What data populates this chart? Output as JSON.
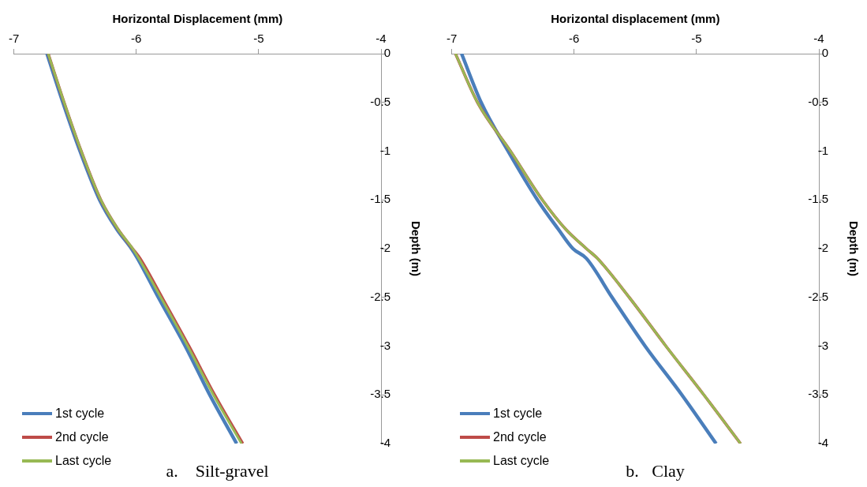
{
  "chart_data": [
    {
      "type": "line",
      "xlabel": "Horizontal Displacement (mm)",
      "ylabel": "Depth (m)",
      "xlim": [
        -7,
        -4
      ],
      "xticks": [
        -7,
        -6,
        -5,
        -4
      ],
      "ylim": [
        -4,
        0
      ],
      "yticks": [
        0,
        -0.5,
        -1,
        -1.5,
        -2,
        -2.5,
        -3,
        -3.5,
        -4
      ],
      "grid": false,
      "marker": "none",
      "legend": "bottom left",
      "annotations": [
        "a.    Silt-gravel"
      ],
      "series": [
        {
          "name": "1st cycle",
          "color": "#4a7ebb",
          "x": [
            -6.73,
            -6.6,
            -6.46,
            -6.3,
            -6.16,
            -6.04,
            -5.99,
            -5.82,
            -5.6,
            -5.4,
            -5.18
          ],
          "values": [
            0,
            -0.5,
            -1,
            -1.5,
            -1.8,
            -2,
            -2.1,
            -2.5,
            -3,
            -3.5,
            -4
          ]
        },
        {
          "name": "2nd cycle",
          "color": "#be4b48",
          "x": [
            -6.72,
            -6.59,
            -6.45,
            -6.29,
            -6.15,
            -6.03,
            -5.97,
            -5.79,
            -5.57,
            -5.36,
            -5.13
          ],
          "values": [
            0,
            -0.5,
            -1,
            -1.5,
            -1.8,
            -2,
            -2.1,
            -2.5,
            -3,
            -3.5,
            -4
          ]
        },
        {
          "name": "Last cycle",
          "color": "#98b954",
          "x": [
            -6.72,
            -6.59,
            -6.45,
            -6.29,
            -6.15,
            -6.03,
            -5.98,
            -5.8,
            -5.58,
            -5.37,
            -5.14
          ],
          "values": [
            0,
            -0.5,
            -1,
            -1.5,
            -1.8,
            -2,
            -2.1,
            -2.5,
            -3,
            -3.5,
            -4
          ]
        }
      ]
    },
    {
      "type": "line",
      "xlabel": "Horizontal displacement (mm)",
      "ylabel": "Depth (m)",
      "xlim": [
        -7,
        -4
      ],
      "xticks": [
        -7,
        -6,
        -5,
        -4
      ],
      "ylim": [
        -4,
        0
      ],
      "yticks": [
        0,
        -0.5,
        -1,
        -1.5,
        -2,
        -2.5,
        -3,
        -3.5,
        -4
      ],
      "grid": false,
      "marker": "none",
      "legend": "bottom left",
      "annotations": [
        "b.   Clay"
      ],
      "series": [
        {
          "name": "1st cycle",
          "color": "#4a7ebb",
          "x": [
            -6.92,
            -6.76,
            -6.54,
            -6.3,
            -6.13,
            -6.01,
            -5.9,
            -5.69,
            -5.42,
            -5.12,
            -4.84
          ],
          "values": [
            0,
            -0.5,
            -1,
            -1.5,
            -1.8,
            -2,
            -2.1,
            -2.5,
            -3,
            -3.5,
            -4
          ]
        },
        {
          "name": "2nd cycle",
          "color": "#be4b48",
          "x": [
            -6.97,
            -6.79,
            -6.52,
            -6.26,
            -6.07,
            -5.9,
            -5.81,
            -5.55,
            -5.25,
            -4.94,
            -4.64
          ],
          "values": [
            0,
            -0.5,
            -1,
            -1.5,
            -1.8,
            -2,
            -2.1,
            -2.5,
            -3,
            -3.5,
            -4
          ]
        },
        {
          "name": "Last cycle",
          "color": "#98b954",
          "x": [
            -6.97,
            -6.79,
            -6.52,
            -6.26,
            -6.07,
            -5.9,
            -5.81,
            -5.55,
            -5.25,
            -4.94,
            -4.64
          ],
          "values": [
            0,
            -0.5,
            -1,
            -1.5,
            -1.8,
            -2,
            -2.1,
            -2.5,
            -3,
            -3.5,
            -4
          ]
        }
      ]
    }
  ]
}
